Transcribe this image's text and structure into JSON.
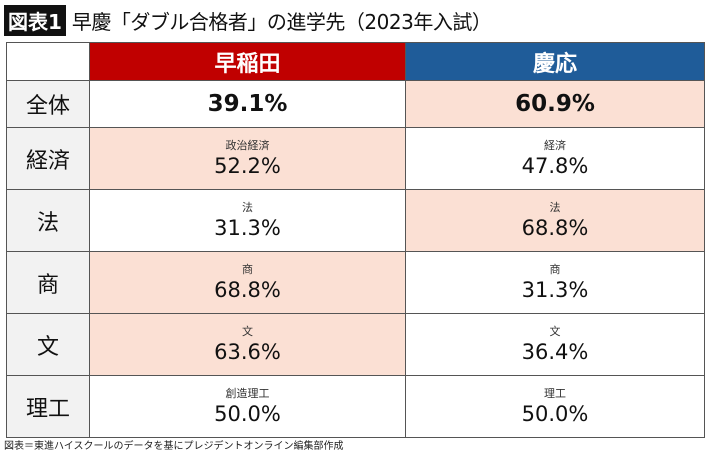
{
  "title": {
    "badge": "図表1",
    "text": "早慶「ダブル合格者」の進学先（2023年入試）"
  },
  "colors": {
    "waseda": "#c00000",
    "keio": "#1f5c99",
    "highlight": "#fbe0d4"
  },
  "header": {
    "waseda": "早稲田",
    "keio": "慶応"
  },
  "overall": {
    "label": "全体",
    "waseda": "39.1%",
    "keio": "60.9%",
    "highlight": "keio"
  },
  "rows": [
    {
      "label": "経済",
      "waseda_sub": "政治経済",
      "waseda": "52.2%",
      "keio_sub": "経済",
      "keio": "47.8%",
      "highlight": "waseda"
    },
    {
      "label": "法",
      "waseda_sub": "法",
      "waseda": "31.3%",
      "keio_sub": "法",
      "keio": "68.8%",
      "highlight": "keio"
    },
    {
      "label": "商",
      "waseda_sub": "商",
      "waseda": "68.8%",
      "keio_sub": "商",
      "keio": "31.3%",
      "highlight": "waseda"
    },
    {
      "label": "文",
      "waseda_sub": "文",
      "waseda": "63.6%",
      "keio_sub": "文",
      "keio": "36.4%",
      "highlight": "waseda"
    },
    {
      "label": "理工",
      "waseda_sub": "創造理工",
      "waseda": "50.0%",
      "keio_sub": "理工",
      "keio": "50.0%",
      "highlight": "none"
    }
  ],
  "footer": "図表＝東進ハイスクールのデータを基にプレジデントオンライン編集部作成"
}
